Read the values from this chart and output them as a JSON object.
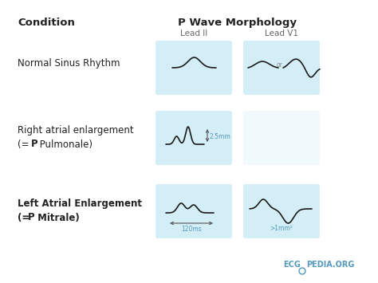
{
  "title": "P Wave Morphology",
  "subtitle": "Condition",
  "header_lead2": "Lead II",
  "header_v1": "Lead V1",
  "bg_color": "#ffffff",
  "box_color": "#d4eef8",
  "text_color": "#222222",
  "wave_color": "#1a1a1a",
  "annot_color": "#5599bb",
  "logo_color": "#5599bb"
}
